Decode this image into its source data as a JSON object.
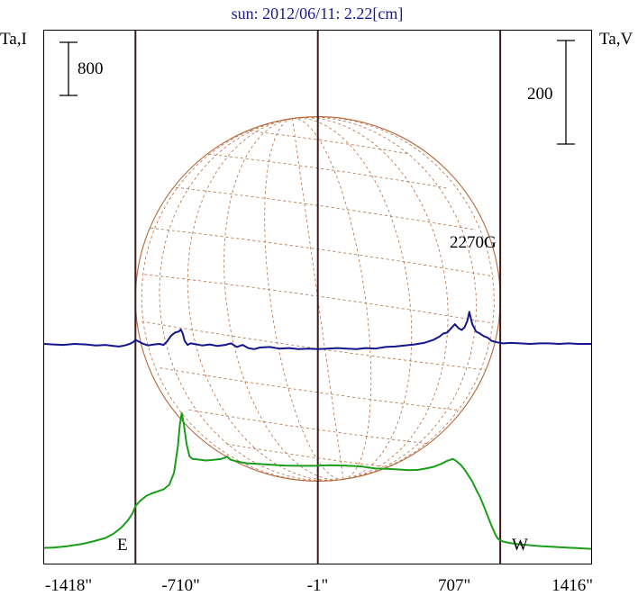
{
  "chart_data": {
    "type": "line",
    "title": "sun: 2012/06/11: 2.22[cm]",
    "left_axis_label": "Ta,I",
    "right_axis_label": "Ta,V",
    "left_scale_bar": "800",
    "right_scale_bar": "200",
    "annotation": "2270G",
    "limb_labels": {
      "east": "E",
      "west": "W"
    },
    "x_ticks": [
      "-1418\"",
      "-710\"",
      "-1\"",
      "707\"",
      "1416\""
    ],
    "x_range": [
      -1418,
      1416
    ],
    "solar_limb_arcsec": [
      -945,
      945
    ],
    "series": [
      {
        "name": "I",
        "color": "#1a9e1a",
        "x": [
          -1418,
          -1370,
          -1300,
          -1220,
          -1160,
          -1100,
          -1060,
          -1020,
          -985,
          -960,
          -945,
          -920,
          -890,
          -860,
          -830,
          -800,
          -770,
          -745,
          -725,
          -715,
          -705,
          -695,
          -680,
          -665,
          -650,
          -620,
          -580,
          -540,
          -500,
          -480,
          -470,
          -455,
          -420,
          -370,
          -310,
          -240,
          -170,
          -100,
          -20,
          60,
          130,
          200,
          230,
          260,
          300,
          360,
          420,
          470,
          520,
          560,
          600,
          640,
          670,
          700,
          720,
          740,
          760,
          780,
          800,
          820,
          840,
          860,
          880,
          900,
          920,
          930,
          940,
          960,
          990,
          1040,
          1100,
          1160,
          1220,
          1290,
          1350,
          1416
        ],
        "y": [
          20,
          25,
          45,
          80,
          120,
          170,
          230,
          320,
          430,
          540,
          650,
          730,
          800,
          840,
          870,
          900,
          970,
          1150,
          1550,
          1880,
          2050,
          1890,
          1580,
          1400,
          1360,
          1350,
          1335,
          1345,
          1360,
          1380,
          1395,
          1350,
          1320,
          1295,
          1285,
          1270,
          1260,
          1255,
          1255,
          1265,
          1260,
          1250,
          1245,
          1230,
          1215,
          1210,
          1200,
          1190,
          1195,
          1215,
          1240,
          1285,
          1330,
          1360,
          1320,
          1270,
          1200,
          1110,
          1020,
          900,
          790,
          650,
          500,
          350,
          220,
          170,
          140,
          115,
          95,
          75,
          60,
          45,
          35,
          25,
          15,
          5
        ]
      },
      {
        "name": "V",
        "color": "#14148c",
        "x": [
          -1418,
          -1370,
          -1320,
          -1260,
          -1200,
          -1150,
          -1100,
          -1060,
          -1030,
          -1000,
          -975,
          -955,
          -945,
          -930,
          -910,
          -880,
          -850,
          -820,
          -800,
          -780,
          -760,
          -740,
          -720,
          -710,
          -700,
          -690,
          -675,
          -660,
          -640,
          -600,
          -560,
          -520,
          -480,
          -450,
          -420,
          -390,
          -360,
          -330,
          -300,
          -250,
          -200,
          -150,
          -100,
          -50,
          0,
          50,
          100,
          150,
          200,
          250,
          300,
          350,
          400,
          450,
          500,
          550,
          600,
          630,
          650,
          670,
          690,
          710,
          730,
          745,
          760,
          775,
          785,
          800,
          820,
          840,
          860,
          880,
          900,
          930,
          960,
          1000,
          1050,
          1100,
          1150,
          1200,
          1250,
          1300,
          1350,
          1416
        ],
        "y": [
          0,
          -1,
          -2,
          0,
          -1,
          -3,
          -2,
          -4,
          -5,
          -3,
          0,
          4,
          8,
          5,
          1,
          -3,
          -1,
          0,
          -2,
          5,
          16,
          22,
          24,
          28,
          20,
          6,
          -2,
          1,
          0,
          -3,
          -1,
          -4,
          -2,
          1,
          -6,
          -2,
          -8,
          -10,
          -7,
          -6,
          -9,
          -8,
          -10,
          -9,
          -10,
          -9,
          -8,
          -9,
          -10,
          -8,
          -9,
          -6,
          -5,
          -3,
          -1,
          2,
          8,
          14,
          20,
          22,
          30,
          38,
          30,
          27,
          32,
          45,
          62,
          38,
          24,
          20,
          15,
          12,
          6,
          3,
          1,
          2,
          1,
          0,
          1,
          1,
          0,
          1,
          0,
          0
        ]
      }
    ]
  }
}
